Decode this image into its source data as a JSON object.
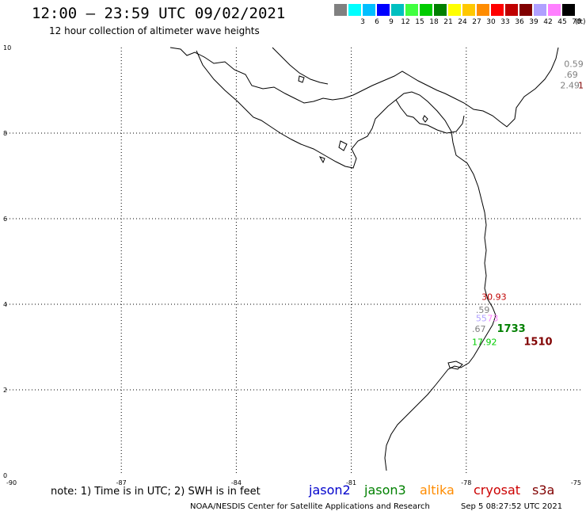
{
  "header": {
    "title": "12:00 – 23:59 UTC 09/02/2021",
    "subtitle": "12 hour collection of altimeter wave heights"
  },
  "legend_scale": {
    "unit": "(ft)",
    "swatches": [
      {
        "label": "",
        "color": "#808080"
      },
      {
        "label": "3",
        "color": "#00ffff"
      },
      {
        "label": "6",
        "color": "#00bfff"
      },
      {
        "label": "9",
        "color": "#0000ff"
      },
      {
        "label": "12",
        "color": "#00c0c0"
      },
      {
        "label": "15",
        "color": "#40ff40"
      },
      {
        "label": "18",
        "color": "#00cc00"
      },
      {
        "label": "21",
        "color": "#008000"
      },
      {
        "label": "24",
        "color": "#ffff00"
      },
      {
        "label": "27",
        "color": "#ffc800"
      },
      {
        "label": "30",
        "color": "#ff8c00"
      },
      {
        "label": "33",
        "color": "#ff0000"
      },
      {
        "label": "36",
        "color": "#c00000"
      },
      {
        "label": "39",
        "color": "#800000"
      },
      {
        "label": "42",
        "color": "#b0a0ff"
      },
      {
        "label": "45",
        "color": "#ff80ff"
      },
      {
        "label": "70",
        "color": "#000000"
      }
    ]
  },
  "map": {
    "lon_ticks": [
      {
        "label": "-90",
        "lon": -90
      },
      {
        "label": "-87",
        "lon": -87
      },
      {
        "label": "-84",
        "lon": -84
      },
      {
        "label": "-81",
        "lon": -81
      },
      {
        "label": "-78",
        "lon": -78
      },
      {
        "label": "-75",
        "lon": -75
      }
    ],
    "lat_ticks": [
      {
        "label": "0",
        "lat": 0
      },
      {
        "label": "2",
        "lat": 2
      },
      {
        "label": "4",
        "lat": 4
      },
      {
        "label": "6",
        "lat": 6
      },
      {
        "label": "8",
        "lat": 8
      },
      {
        "label": "10",
        "lat": 10
      }
    ],
    "lon_range": [
      -90,
      -75
    ],
    "lat_range": [
      0,
      10
    ],
    "gridlines": "dotted",
    "wave_labels": [
      {
        "text": "0.59",
        "lon": -75.45,
        "lat": 9.55,
        "color": "#808080"
      },
      {
        "text": ".69",
        "lon": -75.45,
        "lat": 9.3,
        "color": "#808080"
      },
      {
        "text": "2.49",
        "lon": -75.55,
        "lat": 9.05,
        "color": "#808080"
      },
      {
        "text": "1",
        "lon": -75.0,
        "lat": 9.05,
        "color": "#800000"
      },
      {
        "text": "30.93",
        "lon": -77.6,
        "lat": 4.1,
        "color": "#c00000"
      },
      {
        "text": ".59",
        "lon": -77.75,
        "lat": 3.8,
        "color": "#808080"
      },
      {
        "text": "55",
        "lon": -77.75,
        "lat": 3.6,
        "color": "#b0a0ff"
      },
      {
        "text": "73",
        "lon": -77.45,
        "lat": 3.6,
        "color": "#ff80ff"
      },
      {
        "text": ".67",
        "lon": -77.85,
        "lat": 3.35,
        "color": "#808080"
      },
      {
        "text": "1733",
        "lon": -77.2,
        "lat": 3.35,
        "color": "#008000",
        "bold": true
      },
      {
        "text": "17.92",
        "lon": -77.85,
        "lat": 3.05,
        "color": "#00cc00"
      },
      {
        "text": "1510",
        "lon": -76.5,
        "lat": 3.05,
        "color": "#800000",
        "bold": true
      }
    ]
  },
  "footer": {
    "note": "note:  1) Time is in UTC;  2) SWH is in feet",
    "satellites": [
      {
        "name": "jason2",
        "color": "#0000cc"
      },
      {
        "name": "jason3",
        "color": "#008000"
      },
      {
        "name": "altika",
        "color": "#ff8c00"
      },
      {
        "name": "cryosat",
        "color": "#cc0000"
      },
      {
        "name": "s3a",
        "color": "#800000"
      }
    ],
    "credit": "NOAA/NESDIS Center for Satellite Applications and Research",
    "timestamp": "Sep  5 08:27:52 UTC 2021"
  }
}
